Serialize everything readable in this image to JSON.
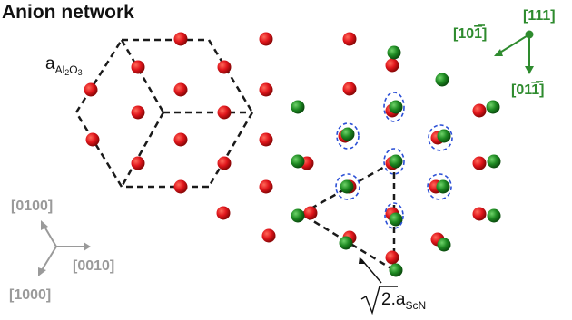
{
  "title": "Anion network",
  "labels": {
    "a_prefix": "a",
    "a_sub": "Al",
    "a_sub2": "2",
    "a_sub3": "O",
    "a_sub4": "3",
    "sqrt_num": "2",
    "sqrt_rest": ".a",
    "sqrt_sub": "ScN"
  },
  "green_axes": {
    "a111": "[111]",
    "a10m1": "[10",
    "a10m1_bar": "1",
    "a10m1_end": "]",
    "a01m1": "[01",
    "a01m1_bar": "1",
    "a01m1_end": "]"
  },
  "gray_axes": {
    "a0100": "[0100]",
    "a0010": "[0010]",
    "a1000": "[1000]"
  },
  "colors": {
    "red_atom": "#e0151b",
    "green_atom": "#1e8a22",
    "green_text": "#2e8b2e",
    "gray_text": "#9a9a9a",
    "dashed_black": "#1a1a1a",
    "dashed_blue": "#2b4fd6"
  }
}
